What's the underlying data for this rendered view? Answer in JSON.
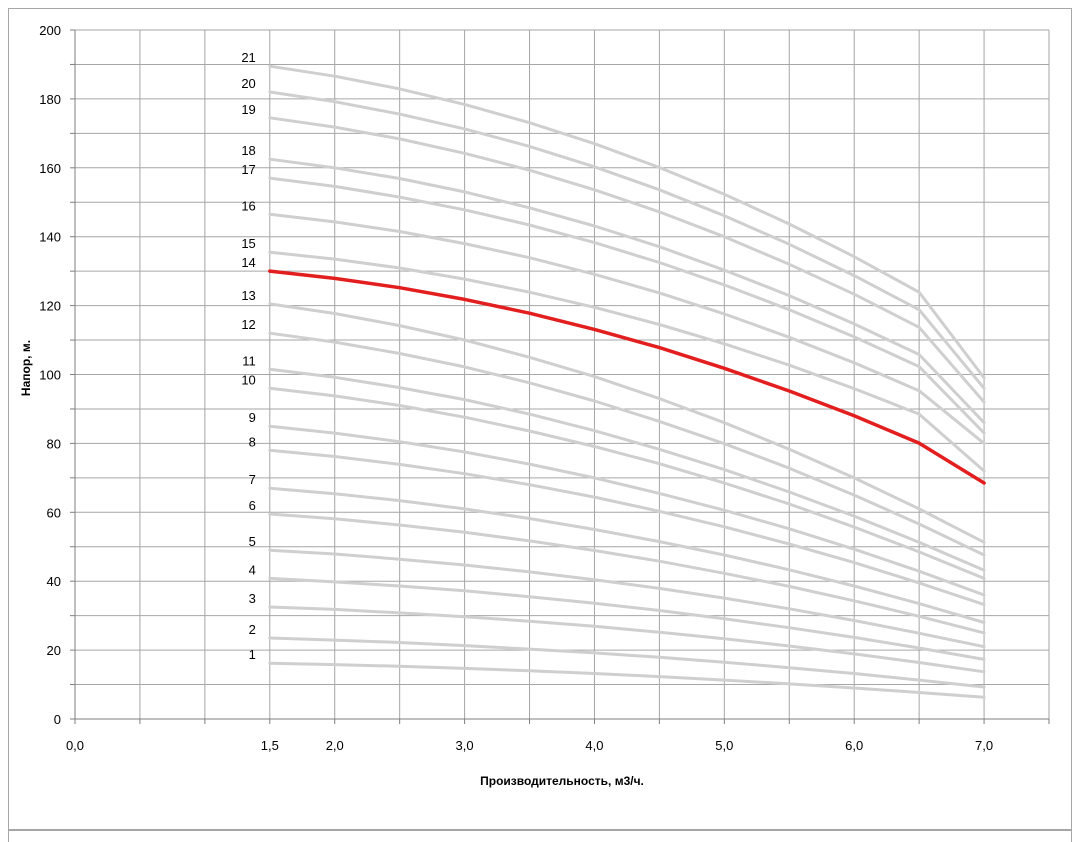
{
  "chart_data": {
    "type": "line",
    "xlabel": "Производительность, м3/ч.",
    "ylabel": "Напор, м.",
    "xlim": [
      0,
      7.5
    ],
    "ylim": [
      0,
      200
    ],
    "x_ticks": [
      {
        "value": 0,
        "label": "0,0"
      },
      {
        "value": 1.5,
        "label": "1,5"
      },
      {
        "value": 2,
        "label": "2,0"
      },
      {
        "value": 3,
        "label": "3,0"
      },
      {
        "value": 4,
        "label": "4,0"
      },
      {
        "value": 5,
        "label": "5,0"
      },
      {
        "value": 6,
        "label": "6,0"
      },
      {
        "value": 7,
        "label": "7,0"
      }
    ],
    "y_ticks": [
      0,
      20,
      40,
      60,
      80,
      100,
      120,
      140,
      160,
      180,
      200
    ],
    "grid": true,
    "x": [
      1.5,
      2.0,
      2.5,
      3.0,
      3.5,
      4.0,
      4.5,
      5.0,
      5.5,
      6.0,
      6.5,
      7.0
    ],
    "highlight_color": "#e31e1e",
    "curve_color": "#cfcfcf",
    "series": [
      {
        "name": "1",
        "values": [
          16.2,
          15.8,
          15.3,
          14.7,
          14.0,
          13.2,
          12.3,
          11.3,
          10.2,
          9.0,
          7.7,
          6.3
        ]
      },
      {
        "name": "2",
        "values": [
          23.5,
          22.9,
          22.2,
          21.3,
          20.3,
          19.2,
          17.9,
          16.5,
          14.9,
          13.2,
          11.3,
          9.3
        ]
      },
      {
        "name": "3",
        "values": [
          32.5,
          31.8,
          30.8,
          29.7,
          28.4,
          26.9,
          25.2,
          23.3,
          21.2,
          18.9,
          16.4,
          13.7
        ]
      },
      {
        "name": "4",
        "values": [
          40.8,
          39.8,
          38.6,
          37.2,
          35.5,
          33.6,
          31.5,
          29.1,
          26.5,
          23.7,
          20.6,
          17.3
        ]
      },
      {
        "name": "5",
        "values": [
          49.0,
          47.9,
          46.4,
          44.7,
          42.7,
          40.4,
          37.9,
          35.1,
          32.0,
          28.6,
          24.9,
          21.0
        ]
      },
      {
        "name": "6",
        "values": [
          59.5,
          58.1,
          56.3,
          54.2,
          51.7,
          48.9,
          45.8,
          42.3,
          38.5,
          34.3,
          29.8,
          25.0
        ]
      },
      {
        "name": "7",
        "values": [
          67.0,
          65.4,
          63.4,
          61.0,
          58.2,
          55.0,
          51.5,
          47.6,
          43.3,
          38.6,
          33.5,
          28.0
        ]
      },
      {
        "name": "8",
        "values": [
          78.0,
          76.2,
          73.9,
          71.2,
          68.0,
          64.4,
          60.3,
          55.8,
          50.8,
          45.4,
          39.5,
          33.2
        ]
      },
      {
        "name": "9",
        "values": [
          85.0,
          83.0,
          80.5,
          77.5,
          74.0,
          70.0,
          65.5,
          60.6,
          55.2,
          49.3,
          42.9,
          36.0
        ]
      },
      {
        "name": "10",
        "values": [
          96.0,
          93.8,
          91.0,
          87.6,
          83.6,
          79.1,
          74.1,
          68.5,
          62.4,
          55.7,
          48.5,
          40.8
        ]
      },
      {
        "name": "11",
        "values": [
          101.5,
          99.2,
          96.2,
          92.7,
          88.5,
          83.7,
          78.3,
          72.4,
          65.9,
          58.9,
          51.3,
          43.2
        ]
      },
      {
        "name": "12",
        "values": [
          112.0,
          109.4,
          106.1,
          102.2,
          97.6,
          92.3,
          86.4,
          79.9,
          72.8,
          65.0,
          56.6,
          47.6
        ]
      },
      {
        "name": "13",
        "values": [
          120.5,
          117.7,
          114.2,
          110.0,
          105.0,
          99.4,
          93.0,
          86.0,
          78.3,
          70.0,
          61.0,
          51.3
        ]
      },
      {
        "name": "14",
        "values": [
          130.0,
          127.9,
          125.2,
          121.8,
          117.8,
          113.1,
          107.8,
          101.8,
          95.2,
          88.0,
          80.1,
          68.5
        ],
        "highlight": true
      },
      {
        "name": "15",
        "values": [
          135.5,
          133.5,
          130.9,
          127.7,
          123.9,
          119.5,
          114.5,
          108.9,
          102.7,
          95.9,
          88.5,
          72.0
        ]
      },
      {
        "name": "16",
        "values": [
          146.5,
          144.3,
          141.5,
          138.0,
          133.9,
          129.1,
          123.7,
          117.6,
          110.8,
          103.4,
          95.3,
          80.0
        ]
      },
      {
        "name": "17",
        "values": [
          157.0,
          154.6,
          151.5,
          147.8,
          143.4,
          138.3,
          132.5,
          126.0,
          118.8,
          110.9,
          102.3,
          83.0
        ]
      },
      {
        "name": "18",
        "values": [
          162.5,
          160.0,
          156.9,
          153.0,
          148.4,
          143.1,
          137.1,
          130.3,
          122.9,
          114.7,
          105.8,
          86.0
        ]
      },
      {
        "name": "19",
        "values": [
          174.5,
          171.8,
          168.4,
          164.2,
          159.3,
          153.6,
          147.2,
          140.0,
          132.0,
          123.3,
          113.7,
          92.0
        ]
      },
      {
        "name": "20",
        "values": [
          182.0,
          179.2,
          175.6,
          171.3,
          166.2,
          160.3,
          153.6,
          146.1,
          137.8,
          128.7,
          118.8,
          96.0
        ]
      },
      {
        "name": "21",
        "values": [
          189.5,
          186.6,
          182.9,
          178.4,
          173.1,
          167.0,
          160.1,
          152.3,
          143.7,
          134.2,
          123.9,
          99.0
        ]
      }
    ]
  }
}
